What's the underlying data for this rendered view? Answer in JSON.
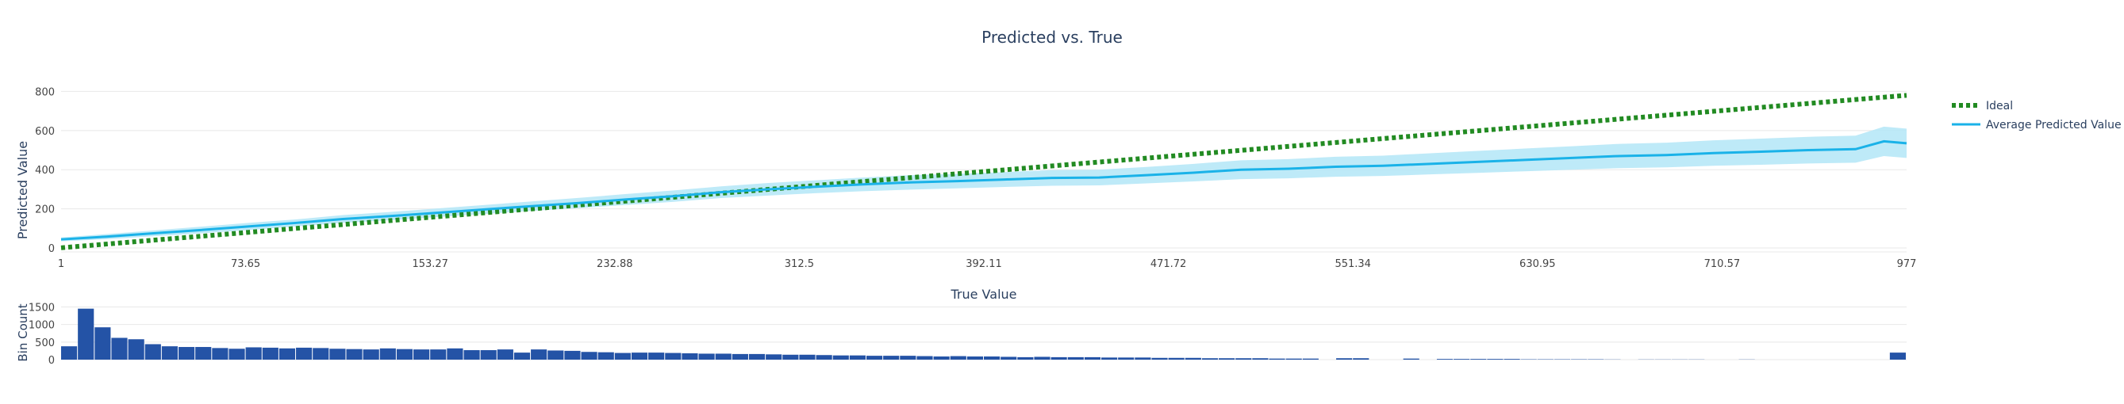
{
  "chart_data": [
    {
      "type": "line",
      "title": "Predicted vs. True",
      "xlabel": "True Value",
      "ylabel": "Predicted Value",
      "xlim": [
        1,
        977
      ],
      "ylim": [
        -20,
        830
      ],
      "x_ticks": [
        "1",
        "73.65",
        "153.27",
        "232.88",
        "312.5",
        "392.11",
        "471.72",
        "551.34",
        "630.95",
        "710.57",
        "977"
      ],
      "y_ticks": [
        "0",
        "200",
        "400",
        "600",
        "800"
      ],
      "grid": true,
      "legend_position": "right",
      "series": [
        {
          "name": "Ideal",
          "style": "dotted",
          "color": "#228b22",
          "x": [
            1,
            977
          ],
          "y": [
            1,
            780
          ]
        },
        {
          "name": "Average Predicted Value",
          "style": "solid",
          "color": "#1ab2e8",
          "band_color": "#b3e6f7",
          "x": [
            1,
            25,
            50,
            75,
            100,
            125,
            150,
            175,
            200,
            225,
            250,
            275,
            300,
            325,
            350,
            375,
            400,
            425,
            450,
            475,
            500,
            525,
            550,
            575,
            600,
            625,
            650,
            675,
            700,
            725,
            750,
            775,
            800,
            825,
            850,
            875,
            900,
            925,
            950,
            965,
            977
          ],
          "y": [
            44,
            58,
            75,
            92,
            110,
            128,
            148,
            163,
            180,
            197,
            214,
            230,
            248,
            265,
            285,
            300,
            313,
            325,
            335,
            342,
            350,
            358,
            360,
            372,
            385,
            400,
            405,
            415,
            420,
            430,
            440,
            450,
            460,
            470,
            475,
            485,
            492,
            500,
            505,
            545,
            535
          ],
          "lower": [
            34,
            45,
            60,
            75,
            92,
            110,
            128,
            142,
            158,
            174,
            190,
            204,
            220,
            236,
            255,
            268,
            280,
            290,
            298,
            305,
            312,
            318,
            320,
            330,
            340,
            352,
            356,
            364,
            368,
            376,
            384,
            392,
            400,
            408,
            412,
            420,
            425,
            432,
            436,
            470,
            460
          ],
          "upper": [
            54,
            71,
            90,
            109,
            128,
            146,
            168,
            184,
            202,
            220,
            238,
            256,
            276,
            294,
            315,
            332,
            346,
            360,
            372,
            379,
            388,
            398,
            400,
            414,
            430,
            448,
            454,
            466,
            472,
            484,
            496,
            508,
            520,
            532,
            538,
            550,
            559,
            568,
            574,
            620,
            610
          ]
        }
      ]
    },
    {
      "type": "bar",
      "xlabel": "True Value",
      "ylabel": "Bin Count",
      "ylim": [
        0,
        1600
      ],
      "y_ticks": [
        "0",
        "500",
        "1000",
        "1500"
      ],
      "color": "#2453a6",
      "values": [
        380,
        1450,
        920,
        620,
        580,
        440,
        380,
        360,
        360,
        330,
        310,
        350,
        340,
        320,
        340,
        330,
        310,
        300,
        290,
        320,
        300,
        290,
        290,
        320,
        270,
        270,
        290,
        200,
        290,
        260,
        250,
        220,
        210,
        190,
        200,
        200,
        190,
        180,
        170,
        170,
        160,
        160,
        150,
        140,
        140,
        130,
        120,
        120,
        110,
        110,
        110,
        100,
        90,
        100,
        90,
        90,
        80,
        70,
        80,
        70,
        70,
        70,
        60,
        60,
        60,
        50,
        50,
        50,
        40,
        40,
        40,
        40,
        30,
        30,
        30,
        0,
        40,
        40,
        0,
        0,
        30,
        0,
        20,
        20,
        20,
        20,
        20,
        10,
        10,
        10,
        10,
        10,
        5,
        0,
        5,
        5,
        5,
        5,
        0,
        0,
        5,
        0,
        0,
        0,
        0,
        0,
        0,
        0,
        0,
        200
      ]
    }
  ]
}
